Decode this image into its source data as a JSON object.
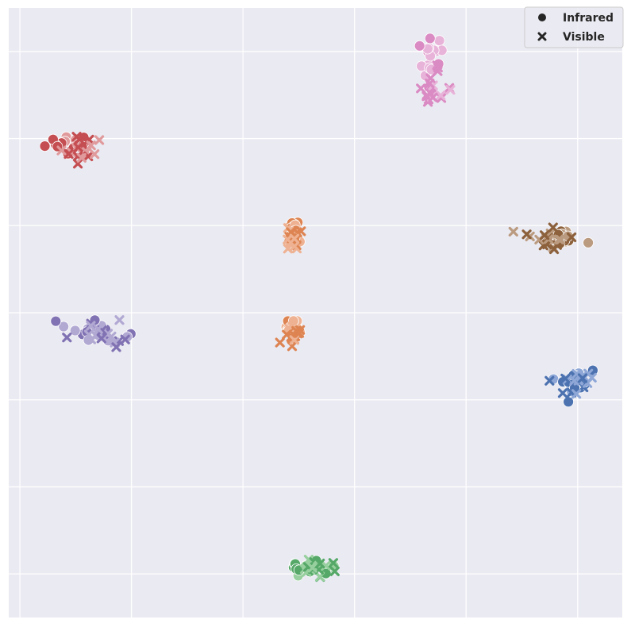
{
  "chart_data": {
    "type": "scatter",
    "title": "",
    "xlabel": "",
    "ylabel": "",
    "xlim": [
      -0.1,
      5.4
    ],
    "ylim": [
      -0.5,
      6.5
    ],
    "grid": true,
    "tick_labels_visible": false,
    "legend_position": "top-right",
    "background_color": "#eaeaf2",
    "grid_color": "#ffffff",
    "marker_legend": [
      {
        "label": "Infrared",
        "marker": "circle"
      },
      {
        "label": "Visible",
        "marker": "x"
      }
    ],
    "clusters": [
      {
        "group": "red",
        "dark_color": "#c44e52",
        "light_color": "#e09a9c",
        "infrared_center": [
          0.45,
          4.95
        ],
        "visible_center": [
          0.55,
          4.88
        ],
        "spread": [
          0.22,
          0.14
        ]
      },
      {
        "group": "pink",
        "dark_color": "#da8bc3",
        "light_color": "#e8b3d9",
        "infrared_center": [
          3.67,
          5.9
        ],
        "visible_center": [
          3.7,
          5.55
        ],
        "spread": [
          0.12,
          0.3
        ]
      },
      {
        "group": "orange-upper",
        "dark_color": "#dd8452",
        "light_color": "#eeb293",
        "infrared_center": [
          2.45,
          3.95
        ],
        "visible_center": [
          2.45,
          3.82
        ],
        "spread": [
          0.06,
          0.12
        ]
      },
      {
        "group": "brown",
        "dark_color": "#8c613c",
        "light_color": "#bb9b80",
        "infrared_center": [
          4.85,
          3.88
        ],
        "visible_center": [
          4.72,
          3.85
        ],
        "spread": [
          0.17,
          0.14
        ]
      },
      {
        "group": "purple",
        "dark_color": "#8172b3",
        "light_color": "#b2a9d3",
        "infrared_center": [
          0.68,
          2.78
        ],
        "visible_center": [
          0.75,
          2.75
        ],
        "spread": [
          0.28,
          0.12
        ]
      },
      {
        "group": "orange-lower",
        "dark_color": "#dd8452",
        "light_color": "#eeb293",
        "infrared_center": [
          2.45,
          2.85
        ],
        "visible_center": [
          2.45,
          2.75
        ],
        "spread": [
          0.07,
          0.12
        ]
      },
      {
        "group": "blue",
        "dark_color": "#4c72b0",
        "light_color": "#8ea7d6",
        "infrared_center": [
          4.95,
          2.2
        ],
        "visible_center": [
          4.93,
          2.22
        ],
        "spread": [
          0.17,
          0.17
        ]
      },
      {
        "group": "green",
        "dark_color": "#55a868",
        "light_color": "#97cf9e",
        "infrared_center": [
          2.6,
          0.05
        ],
        "visible_center": [
          2.63,
          0.05
        ],
        "spread": [
          0.22,
          0.12
        ]
      }
    ]
  }
}
